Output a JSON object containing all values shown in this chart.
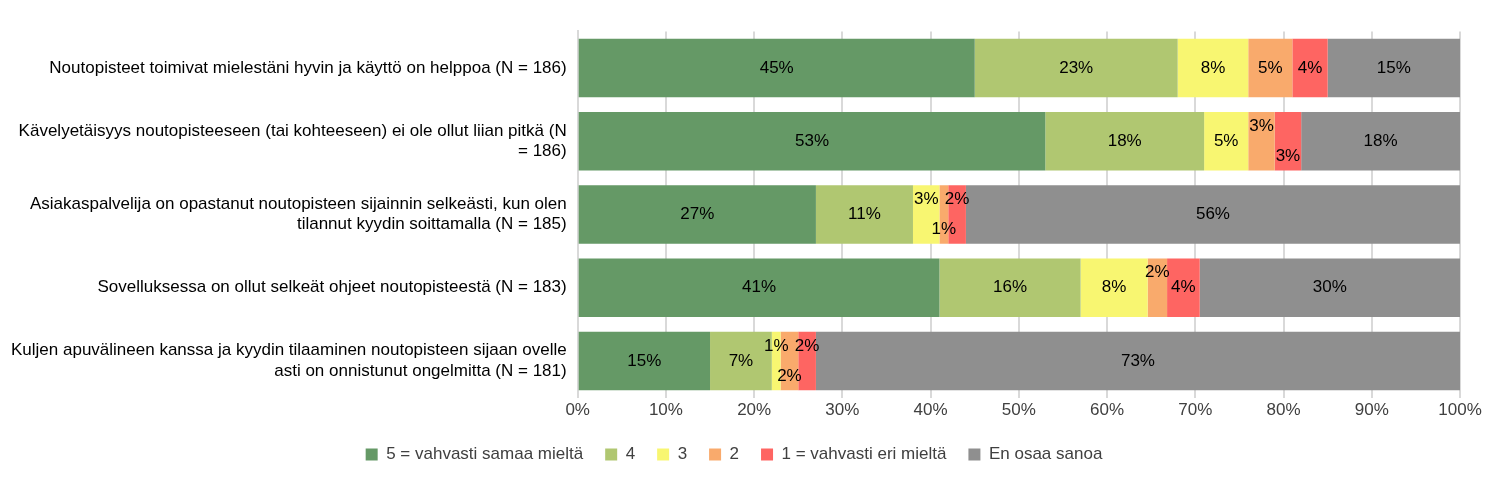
{
  "chart_data": {
    "type": "bar",
    "orientation": "horizontal",
    "stacked": true,
    "categories": [
      "Noutopisteet toimivat mielestäni hyvin ja käyttö on helppoa (N = 186)",
      "Kävelyetäisyys noutopisteeseen (tai kohteeseen) ei ole ollut liian pitkä (N = 186)",
      "Asiakaspalvelija on opastanut noutopisteen sijainnin selkeästi, kun olen tilannut kyydin soittamalla (N = 185)",
      "Sovelluksessa on ollut selkeät ohjeet noutopisteestä (N = 183)",
      "Kuljen apuvälineen kanssa ja kyydin tilaaminen noutopisteen sijaan ovelle asti on onnistunut ongelmitta (N = 181)"
    ],
    "series": [
      {
        "name": "5 = vahvasti samaa mieltä",
        "color": "#659966",
        "values": [
          45,
          53,
          27,
          41,
          15
        ],
        "value_labels": [
          "45%",
          "53%",
          "27%",
          "41%",
          "15%"
        ]
      },
      {
        "name": "4",
        "color": "#b0c771",
        "values": [
          23,
          18,
          11,
          16,
          7
        ],
        "value_labels": [
          "23%",
          "18%",
          "11%",
          "16%",
          "7%"
        ]
      },
      {
        "name": "3",
        "color": "#f8f671",
        "values": [
          8,
          5,
          3,
          7.6,
          1
        ],
        "value_labels": [
          "8%",
          "5%",
          "3%",
          "8%",
          "1%"
        ]
      },
      {
        "name": "2",
        "color": "#f9aa6c",
        "values": [
          5,
          3,
          1,
          2.2,
          2
        ],
        "value_labels": [
          "5%",
          "3%",
          "1%",
          "2%",
          "2%"
        ]
      },
      {
        "name": "1 = vahvasti eri mieltä",
        "color": "#fe6562",
        "values": [
          4,
          3,
          2,
          3.7,
          2
        ],
        "value_labels": [
          "4%",
          "3%",
          "2%",
          "4%",
          "2%"
        ]
      },
      {
        "name": "En osaa sanoa",
        "color": "#8f8f8f",
        "values": [
          15,
          18,
          56,
          29.5,
          73
        ],
        "value_labels": [
          "15%",
          "18%",
          "56%",
          "30%",
          "73%"
        ]
      }
    ],
    "xlim": [
      0,
      100
    ],
    "xticks": [
      {
        "value": 0,
        "label": "0%"
      },
      {
        "value": 10,
        "label": "10%"
      },
      {
        "value": 20,
        "label": "20%"
      },
      {
        "value": 30,
        "label": "30%"
      },
      {
        "value": 40,
        "label": "40%"
      },
      {
        "value": 50,
        "label": "50%"
      },
      {
        "value": 60,
        "label": "60%"
      },
      {
        "value": 70,
        "label": "70%"
      },
      {
        "value": 80,
        "label": "80%"
      },
      {
        "value": 90,
        "label": "90%"
      },
      {
        "value": 100,
        "label": "100%"
      }
    ],
    "grid": "x",
    "legend": "bottom"
  }
}
